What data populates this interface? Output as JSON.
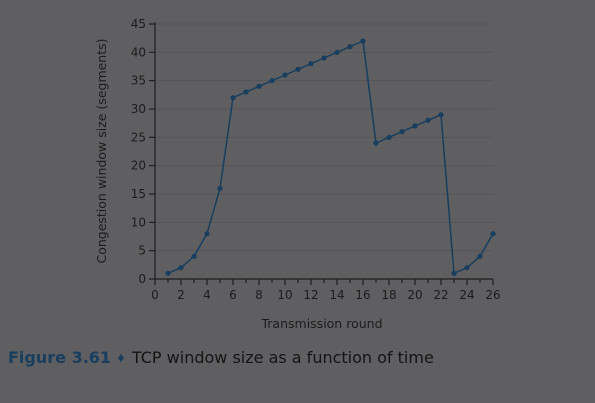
{
  "chart_data": {
    "type": "line",
    "xlabel": "Transmission round",
    "ylabel": "Congestion window size (segments)",
    "xlim": [
      0,
      26
    ],
    "ylim": [
      0,
      45
    ],
    "xticks": [
      0,
      2,
      4,
      6,
      8,
      10,
      12,
      14,
      16,
      18,
      20,
      22,
      24,
      26
    ],
    "yticks": [
      0,
      5,
      10,
      15,
      20,
      25,
      30,
      35,
      40,
      45
    ],
    "grid": true,
    "legend": "none",
    "series": [
      {
        "x": [
          1,
          2,
          3,
          4,
          5,
          6,
          7,
          8,
          9,
          10,
          11,
          12,
          13,
          14,
          15,
          16,
          17,
          18,
          19,
          20,
          21,
          22,
          23,
          24,
          25,
          26
        ],
        "y": [
          1,
          2,
          4,
          8,
          16,
          32,
          33,
          34,
          35,
          36,
          37,
          38,
          39,
          40,
          41,
          42,
          24,
          25,
          26,
          27,
          28,
          29,
          1,
          2,
          4,
          8
        ],
        "color": "#173e5e"
      }
    ]
  },
  "caption": {
    "label": "Figure 3.61",
    "separator": "♦",
    "text": "TCP window size as a function of time"
  }
}
